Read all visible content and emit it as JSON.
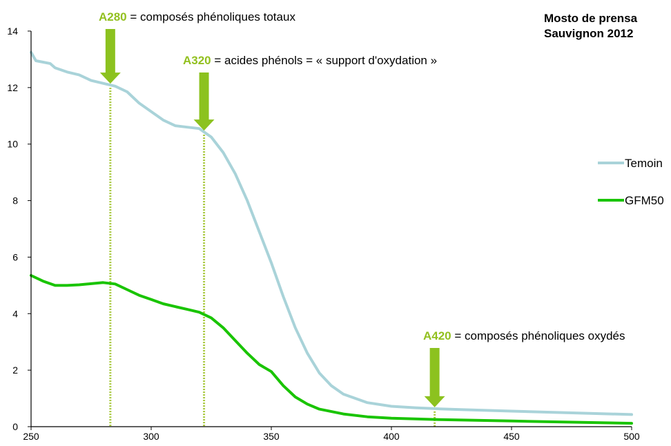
{
  "chart_data": {
    "type": "line",
    "title_lines": [
      "Mosto de prensa",
      "Sauvignon 2012"
    ],
    "xlabel": "",
    "ylabel": "",
    "xlim": [
      250,
      500
    ],
    "ylim": [
      0,
      14
    ],
    "x_ticks": [
      250,
      300,
      350,
      400,
      450,
      500
    ],
    "y_ticks": [
      0,
      2,
      4,
      6,
      8,
      10,
      12,
      14
    ],
    "grid": false,
    "legend_position": "right",
    "series": [
      {
        "name": "Temoin",
        "color": "#a9d3d9",
        "points": [
          [
            250,
            13.25
          ],
          [
            252,
            12.95
          ],
          [
            255,
            12.9
          ],
          [
            258,
            12.85
          ],
          [
            260,
            12.7
          ],
          [
            265,
            12.55
          ],
          [
            270,
            12.45
          ],
          [
            275,
            12.25
          ],
          [
            280,
            12.15
          ],
          [
            285,
            12.05
          ],
          [
            290,
            11.85
          ],
          [
            295,
            11.45
          ],
          [
            300,
            11.15
          ],
          [
            305,
            10.85
          ],
          [
            310,
            10.65
          ],
          [
            315,
            10.6
          ],
          [
            320,
            10.55
          ],
          [
            325,
            10.25
          ],
          [
            330,
            9.7
          ],
          [
            335,
            8.95
          ],
          [
            340,
            8.0
          ],
          [
            345,
            6.9
          ],
          [
            350,
            5.8
          ],
          [
            355,
            4.6
          ],
          [
            360,
            3.5
          ],
          [
            365,
            2.6
          ],
          [
            370,
            1.9
          ],
          [
            375,
            1.45
          ],
          [
            380,
            1.15
          ],
          [
            390,
            0.85
          ],
          [
            400,
            0.72
          ],
          [
            410,
            0.67
          ],
          [
            420,
            0.63
          ],
          [
            430,
            0.6
          ],
          [
            450,
            0.55
          ],
          [
            470,
            0.5
          ],
          [
            500,
            0.43
          ]
        ]
      },
      {
        "name": "GFM50",
        "color": "#19c400",
        "points": [
          [
            250,
            5.35
          ],
          [
            255,
            5.15
          ],
          [
            260,
            5.0
          ],
          [
            265,
            5.0
          ],
          [
            270,
            5.02
          ],
          [
            275,
            5.06
          ],
          [
            280,
            5.1
          ],
          [
            285,
            5.05
          ],
          [
            290,
            4.85
          ],
          [
            295,
            4.65
          ],
          [
            300,
            4.5
          ],
          [
            305,
            4.35
          ],
          [
            310,
            4.25
          ],
          [
            315,
            4.15
          ],
          [
            320,
            4.05
          ],
          [
            325,
            3.85
          ],
          [
            330,
            3.5
          ],
          [
            335,
            3.05
          ],
          [
            340,
            2.6
          ],
          [
            345,
            2.2
          ],
          [
            350,
            1.95
          ],
          [
            355,
            1.45
          ],
          [
            360,
            1.05
          ],
          [
            365,
            0.8
          ],
          [
            370,
            0.62
          ],
          [
            380,
            0.45
          ],
          [
            390,
            0.35
          ],
          [
            400,
            0.3
          ],
          [
            420,
            0.25
          ],
          [
            450,
            0.2
          ],
          [
            500,
            0.12
          ]
        ]
      }
    ],
    "annotations": [
      {
        "key": "A280",
        "text": " = composés phénoliques  totaux",
        "x": 283
      },
      {
        "key": "A320",
        "text": " = acides phénols = « support d'oxydation  »",
        "x": 322
      },
      {
        "key": "A420",
        "text": " = composés phénoliques  oxydés",
        "x": 418
      }
    ]
  },
  "colors": {
    "arrow": "#8cc21f",
    "dotted_line": "#a6c83a",
    "annotation_key": "#92c01f",
    "axis": "#000000"
  }
}
